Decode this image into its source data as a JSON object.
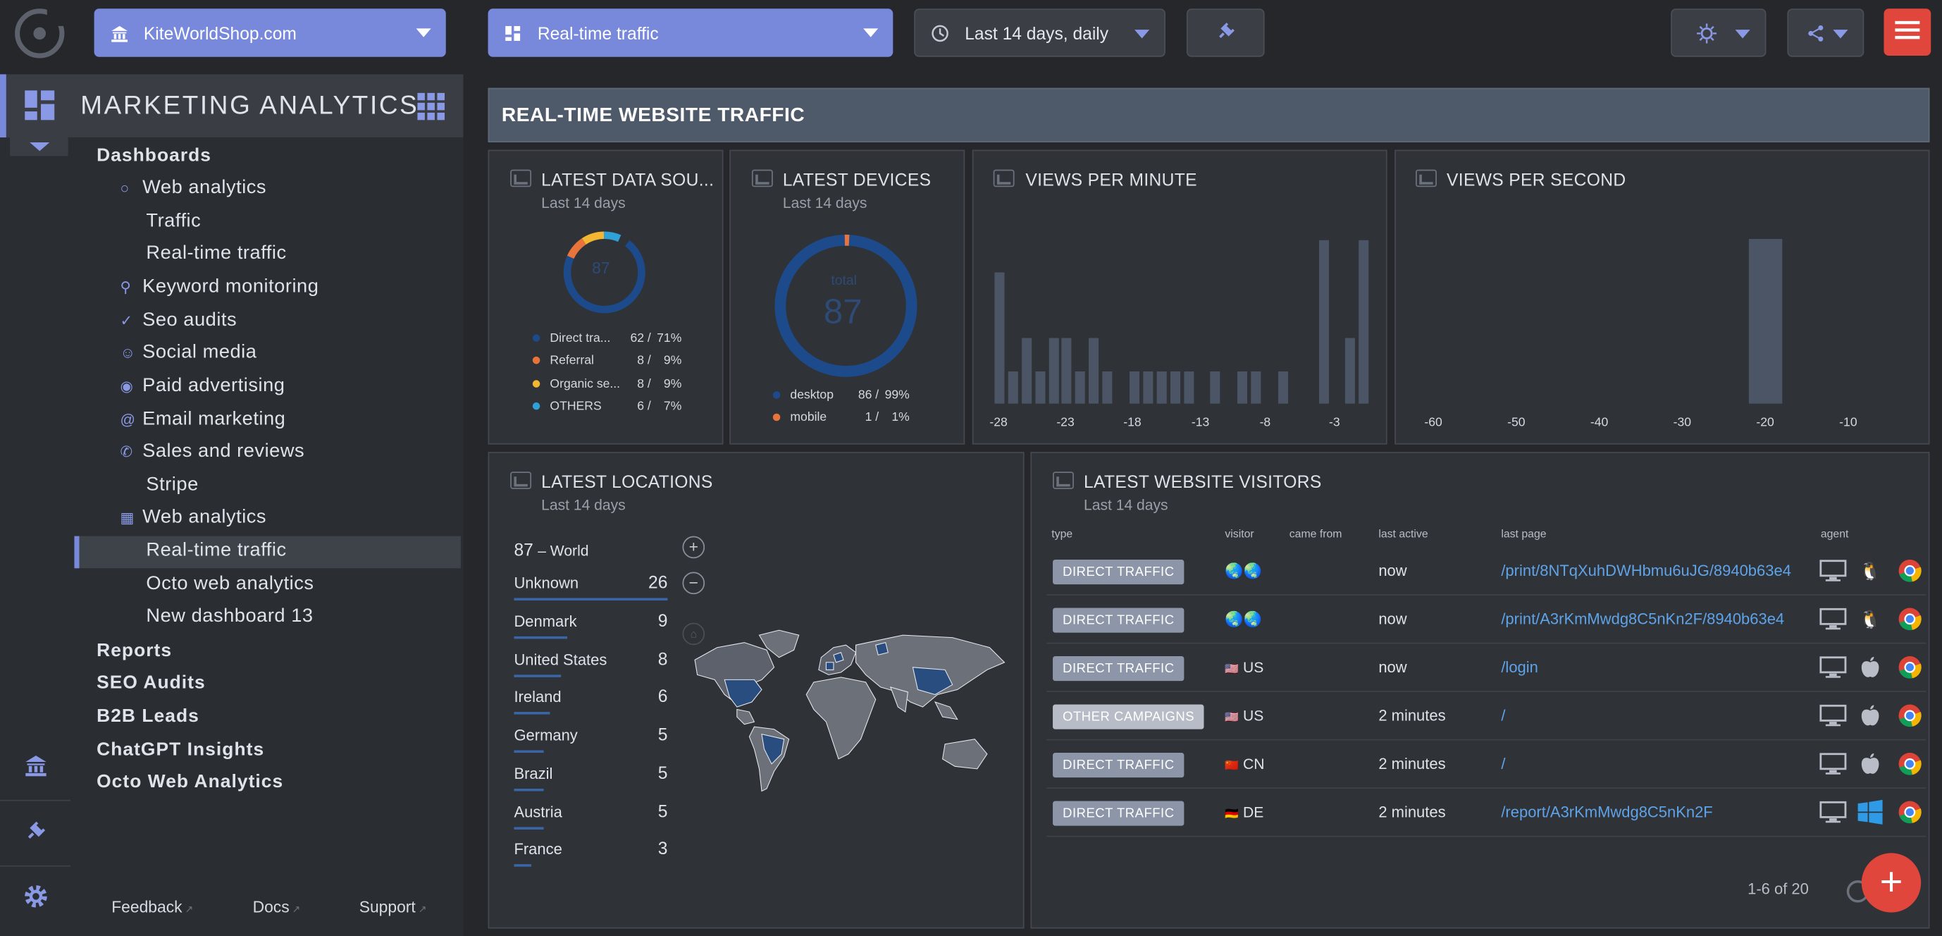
{
  "topbar": {
    "site": "KiteWorldShop.com",
    "dashboard": "Real-time traffic",
    "date_range": "Last 14 days, daily"
  },
  "sidebar": {
    "title": "MARKETING ANALYTICS",
    "items": [
      {
        "label": "Dashboards"
      },
      {
        "label": "Web analytics",
        "icon": "globe-icon"
      },
      {
        "label": "Traffic"
      },
      {
        "label": "Real-time traffic"
      },
      {
        "label": "Keyword monitoring",
        "icon": "key-icon"
      },
      {
        "label": "Seo audits",
        "icon": "seo-icon"
      },
      {
        "label": "Social media",
        "icon": "people-icon"
      },
      {
        "label": "Paid advertising",
        "icon": "ad-icon"
      },
      {
        "label": "Email marketing",
        "icon": "at-icon"
      },
      {
        "label": "Sales and reviews",
        "icon": "phone-icon"
      },
      {
        "label": "Stripe"
      },
      {
        "label": "Web analytics",
        "icon": "document-icon"
      },
      {
        "label": "Real-time traffic"
      },
      {
        "label": "Octo web analytics"
      },
      {
        "label": "New dashboard 13"
      },
      {
        "label": "Reports"
      },
      {
        "label": "SEO Audits"
      },
      {
        "label": "B2B Leads"
      },
      {
        "label": "ChatGPT Insights"
      },
      {
        "label": "Octo Web Analytics"
      }
    ],
    "footer": {
      "feedback": "Feedback",
      "docs": "Docs",
      "support": "Support"
    }
  },
  "page_title": "REAL-TIME WEBSITE TRAFFIC",
  "widgets": {
    "data_sources": {
      "title": "LATEST DATA SOU...",
      "subtitle": "Last 14 days",
      "center": "87",
      "legend": [
        {
          "label": "Direct tra...",
          "value": "62",
          "pct": "71%",
          "color": "#1d4a8a"
        },
        {
          "label": "Referral",
          "value": "8",
          "pct": "9%",
          "color": "#e8743b"
        },
        {
          "label": "Organic se...",
          "value": "8",
          "pct": "9%",
          "color": "#f2b632"
        },
        {
          "label": "OTHERS",
          "value": "6",
          "pct": "7%",
          "color": "#2fa0d8"
        }
      ]
    },
    "devices": {
      "title": "LATEST DEVICES",
      "subtitle": "Last 14 days",
      "center_label": "total",
      "center": "87",
      "legend": [
        {
          "label": "desktop",
          "value": "86",
          "pct": "99%",
          "color": "#1d4a8a"
        },
        {
          "label": "mobile",
          "value": "1",
          "pct": "1%",
          "color": "#e8743b"
        }
      ]
    },
    "views_per_minute": {
      "title": "VIEWS PER MINUTE",
      "x_ticks": [
        "-28",
        "-23",
        "-18",
        "-13",
        "-8",
        "-3"
      ]
    },
    "views_per_second": {
      "title": "VIEWS PER SECOND",
      "x_ticks": [
        "-60",
        "-50",
        "-40",
        "-30",
        "-20",
        "-10"
      ]
    },
    "locations": {
      "title": "LATEST LOCATIONS",
      "subtitle": "Last 14 days",
      "total": "87",
      "total_label": "– World",
      "rows": [
        {
          "name": "Unknown",
          "count": "26"
        },
        {
          "name": "Denmark",
          "count": "9"
        },
        {
          "name": "United States",
          "count": "8"
        },
        {
          "name": "Ireland",
          "count": "6"
        },
        {
          "name": "Germany",
          "count": "5"
        },
        {
          "name": "Brazil",
          "count": "5"
        },
        {
          "name": "Austria",
          "count": "5"
        },
        {
          "name": "France",
          "count": "3"
        }
      ]
    },
    "visitors": {
      "title": "LATEST WEBSITE VISITORS",
      "subtitle": "Last 14 days",
      "columns": [
        "type",
        "visitor",
        "came from",
        "last active",
        "last page",
        "agent"
      ],
      "rows": [
        {
          "type": "DIRECT TRAFFIC",
          "visitor": "",
          "active": "now",
          "page": "/print/8NTqXuhDWHbmu6uJG/8940b63e4",
          "os": "linux"
        },
        {
          "type": "DIRECT TRAFFIC",
          "visitor": "",
          "active": "now",
          "page": "/print/A3rKmMwdg8C5nKn2F/8940b63e4",
          "os": "linux"
        },
        {
          "type": "DIRECT TRAFFIC",
          "visitor": "US",
          "active": "now",
          "page": "/login",
          "os": "apple"
        },
        {
          "type": "OTHER CAMPAIGNS",
          "visitor": "US",
          "active": "2 minutes",
          "page": "/",
          "os": "apple"
        },
        {
          "type": "DIRECT TRAFFIC",
          "visitor": "CN",
          "active": "2 minutes",
          "page": "/",
          "os": "apple"
        },
        {
          "type": "DIRECT TRAFFIC",
          "visitor": "DE",
          "active": "2 minutes",
          "page": "/report/A3rKmMwdg8C5nKn2F",
          "os": "windows"
        }
      ],
      "pagination": "1-6 of 20"
    }
  },
  "chart_data": [
    {
      "type": "bar",
      "title": "VIEWS PER MINUTE",
      "x": [
        -30,
        -29,
        -28,
        -27,
        -26,
        -25,
        -24,
        -23,
        -22,
        -21,
        -20,
        -19,
        -18,
        -17,
        -16,
        -15,
        -14,
        -13,
        -12,
        -11,
        -10,
        -9,
        -8,
        -7,
        -6,
        -5,
        -4,
        -3,
        -2,
        -1
      ],
      "series": [
        {
          "values": [
            0,
            4,
            1,
            2,
            1,
            2,
            2,
            1,
            2,
            1,
            0,
            1,
            1,
            1,
            1,
            1,
            0,
            1,
            0,
            1,
            1,
            0,
            1,
            0,
            0,
            5,
            0,
            2,
            5,
            0
          ]
        }
      ]
    },
    {
      "type": "bar",
      "title": "VIEWS PER SECOND",
      "x": [
        -20
      ],
      "series": [
        {
          "values": [
            1
          ]
        }
      ]
    }
  ]
}
